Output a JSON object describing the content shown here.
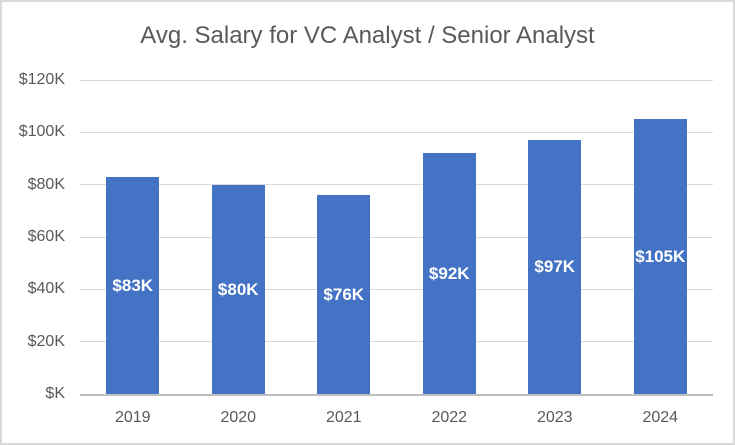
{
  "chart_data": {
    "type": "bar",
    "title": "Avg. Salary for VC Analyst / Senior Analyst",
    "categories": [
      "2019",
      "2020",
      "2021",
      "2022",
      "2023",
      "2024"
    ],
    "values": [
      83,
      80,
      76,
      92,
      97,
      105
    ],
    "data_labels": [
      "$83K",
      "$80K",
      "$76K",
      "$92K",
      "$97K",
      "$105K"
    ],
    "y_ticks": [
      {
        "value": 120,
        "label": "$120K"
      },
      {
        "value": 100,
        "label": "$100K"
      },
      {
        "value": 80,
        "label": "$80K"
      },
      {
        "value": 60,
        "label": "$60K"
      },
      {
        "value": 40,
        "label": "$40K"
      },
      {
        "value": 20,
        "label": "$20K"
      },
      {
        "value": 0,
        "label": "$K"
      }
    ],
    "xlabel": "",
    "ylabel": "",
    "ylim": [
      0,
      120
    ],
    "grid": true,
    "legend": "none",
    "colors": {
      "bar": "#4472C4",
      "data_label": "#FFFFFF",
      "axis_text": "#595959",
      "title_text": "#595959",
      "gridline": "#D9D9D9",
      "axis_line": "#BFBFBF",
      "frame_border": "#D9D9D9",
      "background": "#FFFFFF"
    }
  }
}
